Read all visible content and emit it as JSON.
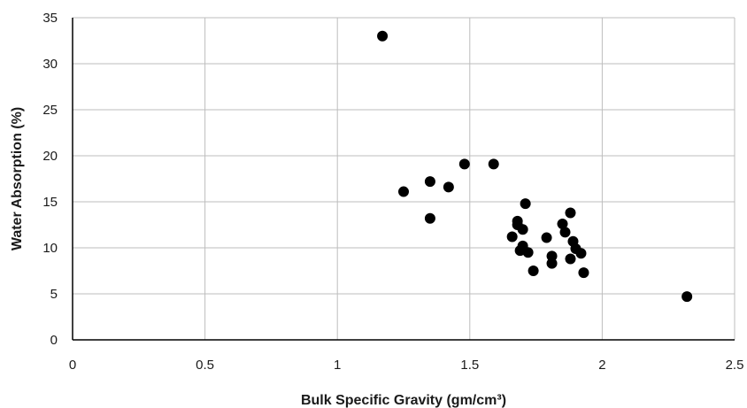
{
  "chart_data": {
    "type": "scatter",
    "title": "",
    "xlabel": "Bulk Specific Gravity (gm/cm³)",
    "ylabel": "Water Absorption (%)",
    "xlim": [
      0,
      2.5
    ],
    "ylim": [
      0,
      35
    ],
    "x_ticks": [
      0,
      0.5,
      1,
      1.5,
      2,
      2.5
    ],
    "x_tick_labels": [
      "0",
      "0.5",
      "1",
      "1.5",
      "2",
      "2.5"
    ],
    "y_ticks": [
      0,
      5,
      10,
      15,
      20,
      25,
      30,
      35
    ],
    "y_tick_labels": [
      "0",
      "5",
      "10",
      "15",
      "20",
      "25",
      "30",
      "35"
    ],
    "grid": true,
    "legend": "none",
    "marker_color": "#000000",
    "grid_color": "#bdbdbd",
    "series": [
      {
        "points": [
          {
            "x": 1.17,
            "y": 33.0
          },
          {
            "x": 1.25,
            "y": 16.1
          },
          {
            "x": 1.35,
            "y": 17.2
          },
          {
            "x": 1.35,
            "y": 13.2
          },
          {
            "x": 1.42,
            "y": 16.6
          },
          {
            "x": 1.48,
            "y": 19.1
          },
          {
            "x": 1.59,
            "y": 19.1
          },
          {
            "x": 1.66,
            "y": 11.2
          },
          {
            "x": 1.68,
            "y": 12.9
          },
          {
            "x": 1.68,
            "y": 12.5
          },
          {
            "x": 1.69,
            "y": 9.7
          },
          {
            "x": 1.7,
            "y": 12.0
          },
          {
            "x": 1.7,
            "y": 10.2
          },
          {
            "x": 1.71,
            "y": 14.8
          },
          {
            "x": 1.72,
            "y": 9.5
          },
          {
            "x": 1.74,
            "y": 7.5
          },
          {
            "x": 1.79,
            "y": 11.1
          },
          {
            "x": 1.81,
            "y": 9.1
          },
          {
            "x": 1.81,
            "y": 8.3
          },
          {
            "x": 1.85,
            "y": 12.6
          },
          {
            "x": 1.86,
            "y": 11.7
          },
          {
            "x": 1.88,
            "y": 13.8
          },
          {
            "x": 1.88,
            "y": 8.8
          },
          {
            "x": 1.89,
            "y": 10.7
          },
          {
            "x": 1.9,
            "y": 9.9
          },
          {
            "x": 1.92,
            "y": 9.4
          },
          {
            "x": 1.93,
            "y": 7.3
          },
          {
            "x": 2.32,
            "y": 4.7
          }
        ]
      }
    ]
  }
}
